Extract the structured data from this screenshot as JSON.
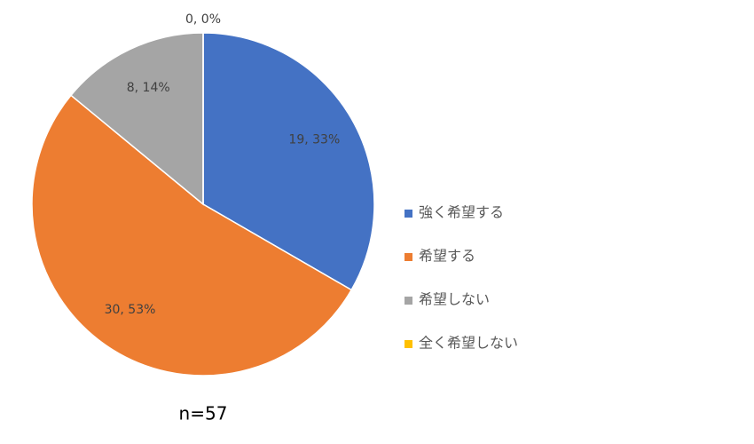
{
  "chart_data": {
    "type": "pie",
    "categories": [
      "強く希望する",
      "希望する",
      "希望しない",
      "全く希望しない"
    ],
    "values": [
      19,
      30,
      8,
      0
    ],
    "value_labels": [
      "19, 33%",
      "30, 53%",
      "8, 14%",
      "0, 0%"
    ],
    "colors": [
      "#4472c4",
      "#ed7d31",
      "#a5a5a5",
      "#ffc000"
    ],
    "annotation": "n=57",
    "legend": "right"
  }
}
